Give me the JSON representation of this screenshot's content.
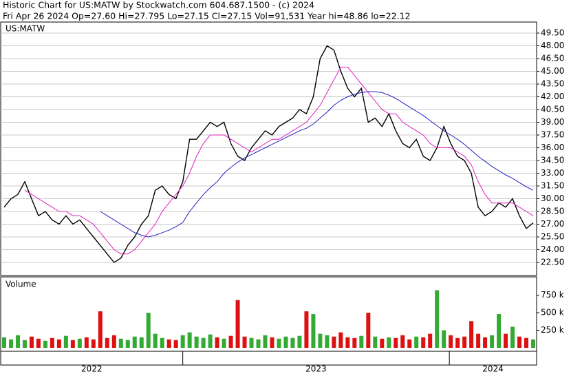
{
  "chart_data": {
    "type": "stock",
    "title": "Historic Chart for US:MATW by Stockwatch.com 604.687.1500 - (c) 2024",
    "subtitle": "Fri Apr 26 2024  Op=27.60  Hi=27.795  Lo=27.15  Cl=27.15  Vol=91,531  Year hi=48.86  lo=22.12",
    "symbol": "US:MATW",
    "volume_label": "Volume",
    "xlim": [
      0,
      78
    ],
    "periods": [
      {
        "label": "2022",
        "start": 0
      },
      {
        "label": "2023",
        "start": 26.5
      },
      {
        "label": "2024",
        "start": 65.3
      }
    ],
    "ylim": [
      20.96,
      50.8
    ],
    "yticks": [
      {
        "value": 22.5,
        "label": "22.50"
      },
      {
        "value": 24,
        "label": "24.00"
      },
      {
        "value": 25.5,
        "label": "25.50"
      },
      {
        "value": 27,
        "label": "27.00"
      },
      {
        "value": 28.5,
        "label": "28.50"
      },
      {
        "value": 30,
        "label": "30.00"
      },
      {
        "value": 31.5,
        "label": "31.50"
      },
      {
        "value": 33,
        "label": "33.00"
      },
      {
        "value": 34.5,
        "label": "34.50"
      },
      {
        "value": 36,
        "label": "36.00"
      },
      {
        "value": 37.5,
        "label": "37.50"
      },
      {
        "value": 39,
        "label": "39.00"
      },
      {
        "value": 40.5,
        "label": "40.50"
      },
      {
        "value": 42,
        "label": "42.00"
      },
      {
        "value": 43.5,
        "label": "43.50"
      },
      {
        "value": 45,
        "label": "45.00"
      },
      {
        "value": 46.5,
        "label": "46.50"
      },
      {
        "value": 48,
        "label": "48.00"
      },
      {
        "value": 49.5,
        "label": "49.50"
      }
    ],
    "grid": true,
    "series": [
      {
        "name": "Close",
        "color": "#000000",
        "values": [
          29,
          30,
          30.5,
          32,
          30,
          28,
          28.5,
          27.5,
          27,
          28,
          27,
          27.5,
          26.5,
          25.5,
          24.5,
          23.5,
          22.5,
          23,
          24.5,
          25.5,
          27,
          28,
          31,
          31.5,
          30.5,
          30,
          32,
          37,
          37,
          38,
          39,
          38.5,
          39,
          36.5,
          35,
          34.5,
          36,
          37,
          38,
          37.5,
          38.5,
          39,
          39.5,
          40.5,
          40,
          42,
          46.5,
          48,
          47.5,
          45,
          43,
          42,
          43,
          39,
          39.5,
          38.5,
          40,
          38,
          36.5,
          36,
          37,
          35,
          34.5,
          36,
          38.5,
          36.5,
          35,
          34.5,
          33,
          29,
          28,
          28.5,
          29.5,
          29,
          30,
          28,
          26.5,
          27.15
        ]
      },
      {
        "name": "MA short",
        "color": "#e020c0",
        "values": [
          null,
          null,
          null,
          31,
          30.5,
          30,
          29.5,
          29,
          28.5,
          28.5,
          28,
          28,
          27.5,
          27,
          26,
          25,
          24,
          23.5,
          23.5,
          24,
          25,
          26,
          27,
          28.5,
          29.5,
          30.5,
          31.5,
          33,
          35,
          36.5,
          37.5,
          37.5,
          37.5,
          37,
          36.5,
          36,
          35.5,
          36,
          36.5,
          37,
          37,
          37.5,
          38,
          38.5,
          39,
          40,
          41,
          42.5,
          44,
          45.5,
          45.5,
          44.5,
          43.5,
          42.5,
          41.5,
          40.5,
          40,
          40,
          39,
          38.5,
          38,
          37.5,
          36.5,
          36,
          36,
          36,
          35.5,
          35,
          34,
          32,
          30.5,
          29.5,
          29.5,
          29.5,
          29.5,
          29,
          28.5,
          28
        ]
      },
      {
        "name": "MA long",
        "color": "#2020c0",
        "values": [
          null,
          null,
          null,
          null,
          null,
          null,
          null,
          null,
          null,
          null,
          null,
          null,
          null,
          null,
          28.5,
          28,
          27.5,
          27,
          26.5,
          26,
          25.7,
          25.5,
          25.7,
          26,
          26.3,
          26.7,
          27.2,
          28.5,
          29.5,
          30.5,
          31.3,
          32,
          33,
          33.7,
          34.3,
          34.8,
          35.2,
          35.6,
          36,
          36.4,
          36.8,
          37.2,
          37.6,
          38,
          38.3,
          38.8,
          39.5,
          40.2,
          41,
          41.6,
          42,
          42.3,
          42.5,
          42.6,
          42.6,
          42.5,
          42.2,
          41.8,
          41.3,
          40.8,
          40.3,
          39.8,
          39.2,
          38.6,
          38,
          37.5,
          37,
          36.4,
          35.7,
          35,
          34.4,
          33.8,
          33.3,
          32.8,
          32.4,
          31.9,
          31.4,
          31
        ]
      }
    ],
    "volume": {
      "up_color": "#33aa33",
      "down_color": "#dd1111",
      "ylim": [
        0,
        1010000
      ],
      "yticks": [
        {
          "value": 250000,
          "label": "250 k"
        },
        {
          "value": 500000,
          "label": "500 k"
        },
        {
          "value": 750000,
          "label": "750 k"
        }
      ],
      "values": [
        150000,
        120000,
        180000,
        110000,
        160000,
        130000,
        100000,
        140000,
        120000,
        170000,
        110000,
        130000,
        150000,
        120000,
        520000,
        140000,
        180000,
        130000,
        110000,
        160000,
        150000,
        500000,
        200000,
        140000,
        120000,
        110000,
        180000,
        220000,
        160000,
        140000,
        190000,
        150000,
        130000,
        170000,
        680000,
        160000,
        140000,
        120000,
        180000,
        150000,
        130000,
        160000,
        140000,
        170000,
        520000,
        480000,
        200000,
        180000,
        160000,
        220000,
        150000,
        140000,
        170000,
        500000,
        160000,
        130000,
        150000,
        140000,
        180000,
        120000,
        160000,
        150000,
        200000,
        820000,
        250000,
        180000,
        140000,
        160000,
        380000,
        200000,
        150000,
        180000,
        480000,
        200000,
        300000,
        160000,
        140000,
        120000
      ]
    }
  }
}
